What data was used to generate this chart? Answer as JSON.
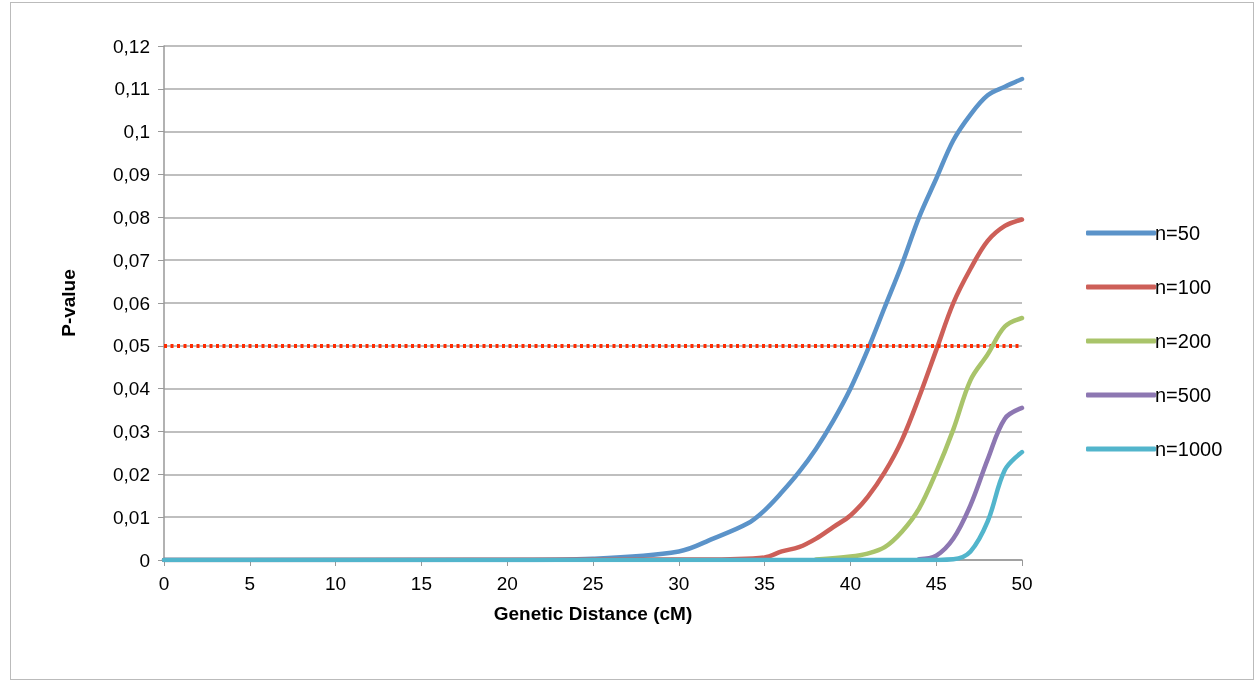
{
  "chart_data": {
    "type": "line",
    "xlabel": "Genetic Distance (cM)",
    "ylabel": "P-value",
    "xlim": [
      0,
      50
    ],
    "xticks": [
      0,
      5,
      10,
      15,
      20,
      25,
      30,
      35,
      40,
      45,
      50
    ],
    "ylim": [
      0,
      0.12
    ],
    "yticks": [
      0,
      {
        "value": 0.01,
        "label": "0,01"
      },
      {
        "value": 0.02,
        "label": "0,02"
      },
      {
        "value": 0.03,
        "label": "0,03"
      },
      {
        "value": 0.04,
        "label": "0,04"
      },
      {
        "value": 0.05,
        "label": "0,05"
      },
      {
        "value": 0.06,
        "label": "0,06"
      },
      {
        "value": 0.07,
        "label": "0,07"
      },
      {
        "value": 0.08,
        "label": "0,08"
      },
      {
        "value": 0.09,
        "label": "0,09"
      },
      {
        "value": 0.1,
        "label": "0,1"
      },
      {
        "value": 0.11,
        "label": "0,11"
      },
      {
        "value": 0.12,
        "label": "0,12"
      }
    ],
    "grid": "y",
    "legend": "right",
    "marker": "none",
    "line_style": "solid",
    "ref_lines": [
      {
        "axis": "y",
        "value": 0.05,
        "color": "#ff2a00",
        "line_style": "dotted"
      }
    ],
    "series": [
      {
        "name": "n=50",
        "color": "#5b93c9",
        "x": [
          0,
          20,
          25,
          30,
          32,
          34,
          35,
          36,
          37,
          38,
          39,
          40,
          41,
          42,
          43,
          44,
          45,
          46,
          47,
          48,
          49,
          50
        ],
        "values": [
          0,
          0,
          0.0003,
          0.002,
          0.005,
          0.0085,
          0.0116,
          0.0158,
          0.0205,
          0.026,
          0.0325,
          0.04,
          0.049,
          0.059,
          0.069,
          0.08,
          0.089,
          0.098,
          0.104,
          0.1085,
          0.1105,
          0.1123
        ]
      },
      {
        "name": "n=100",
        "color": "#cd5f58",
        "x": [
          0,
          30,
          33,
          35,
          36,
          37,
          38,
          39,
          40,
          41,
          42,
          43,
          44,
          45,
          46,
          47,
          48,
          49,
          50
        ],
        "values": [
          0,
          0.0001,
          0.0002,
          0.0006,
          0.002,
          0.003,
          0.005,
          0.0077,
          0.0104,
          0.0147,
          0.0205,
          0.028,
          0.038,
          0.049,
          0.06,
          0.068,
          0.0745,
          0.078,
          0.0795
        ]
      },
      {
        "name": "n=200",
        "color": "#a9c46a",
        "x": [
          38,
          40,
          41,
          42,
          43,
          44,
          45,
          46,
          47,
          48,
          49,
          50
        ],
        "values": [
          0.0001,
          0.0008,
          0.0015,
          0.003,
          0.0066,
          0.012,
          0.0205,
          0.0305,
          0.042,
          0.048,
          0.0545,
          0.0565
        ]
      },
      {
        "name": "n=500",
        "color": "#8d77b2",
        "x": [
          44,
          45,
          46,
          47,
          48,
          49,
          50
        ],
        "values": [
          0.0002,
          0.001,
          0.005,
          0.0128,
          0.0235,
          0.033,
          0.0355
        ]
      },
      {
        "name": "n=1000",
        "color": "#52b5cc",
        "x": [
          0,
          44,
          46,
          47,
          48,
          49,
          50
        ],
        "values": [
          0,
          0,
          0.0002,
          0.002,
          0.009,
          0.021,
          0.0252
        ]
      }
    ]
  }
}
